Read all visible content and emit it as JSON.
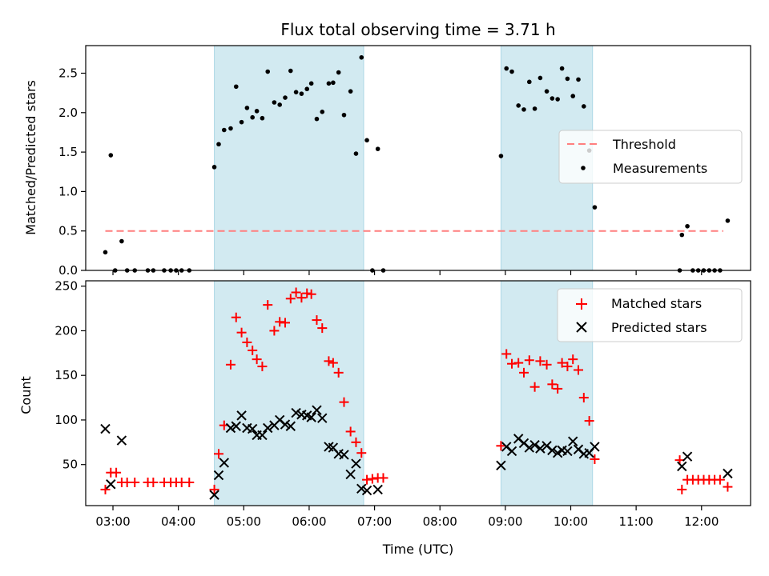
{
  "chart_data": [
    {
      "type": "scatter",
      "title": "Flux total observing time = 3.71 h",
      "xlabel": "",
      "ylabel": "Matched/Predicted stars",
      "ylim": [
        0,
        2.85
      ],
      "xlim": [
        "02:35",
        "12:45"
      ],
      "yticks": [
        "0.0",
        "0.5",
        "1.0",
        "1.5",
        "2.0",
        "2.5"
      ],
      "xticks": [
        "03:00",
        "04:00",
        "05:00",
        "06:00",
        "07:00",
        "08:00",
        "09:00",
        "10:00",
        "11:00",
        "12:00"
      ],
      "show_xtick_labels": false,
      "legend": {
        "placement": "center-right",
        "entries": [
          "Threshold",
          "Measurements"
        ]
      },
      "shaded_intervals": [
        [
          "04:33",
          "06:50"
        ],
        [
          "08:56",
          "10:20"
        ]
      ],
      "threshold": {
        "name": "Threshold",
        "value": 0.5,
        "x": [
          "02:53",
          "12:20"
        ],
        "color": "#ff7f7f"
      },
      "series": [
        {
          "name": "Measurements",
          "marker": "dot",
          "color": "#000000",
          "points": [
            [
              "02:53",
              0.23
            ],
            [
              "02:58",
              1.46
            ],
            [
              "03:02",
              0.0
            ],
            [
              "03:08",
              0.37
            ],
            [
              "03:13",
              0.0
            ],
            [
              "03:20",
              0.0
            ],
            [
              "03:32",
              0.0
            ],
            [
              "03:37",
              0.0
            ],
            [
              "03:47",
              0.0
            ],
            [
              "03:53",
              0.0
            ],
            [
              "03:58",
              0.0
            ],
            [
              "04:03",
              0.0
            ],
            [
              "04:10",
              0.0
            ],
            [
              "04:33",
              1.31
            ],
            [
              "04:37",
              1.6
            ],
            [
              "04:42",
              1.78
            ],
            [
              "04:48",
              1.8
            ],
            [
              "04:53",
              2.33
            ],
            [
              "04:58",
              1.88
            ],
            [
              "05:03",
              2.06
            ],
            [
              "05:08",
              1.94
            ],
            [
              "05:12",
              2.02
            ],
            [
              "05:17",
              1.93
            ],
            [
              "05:22",
              2.52
            ],
            [
              "05:28",
              2.13
            ],
            [
              "05:33",
              2.1
            ],
            [
              "05:38",
              2.19
            ],
            [
              "05:43",
              2.53
            ],
            [
              "05:48",
              2.26
            ],
            [
              "05:53",
              2.24
            ],
            [
              "05:58",
              2.3
            ],
            [
              "06:02",
              2.37
            ],
            [
              "06:07",
              1.92
            ],
            [
              "06:12",
              2.01
            ],
            [
              "06:18",
              2.37
            ],
            [
              "06:22",
              2.38
            ],
            [
              "06:27",
              2.51
            ],
            [
              "06:32",
              1.97
            ],
            [
              "06:38",
              2.27
            ],
            [
              "06:43",
              1.48
            ],
            [
              "06:48",
              2.7
            ],
            [
              "06:53",
              1.65
            ],
            [
              "06:58",
              0.0
            ],
            [
              "07:03",
              1.54
            ],
            [
              "07:08",
              0.0
            ],
            [
              "08:56",
              1.45
            ],
            [
              "09:01",
              2.56
            ],
            [
              "09:06",
              2.52
            ],
            [
              "09:12",
              2.09
            ],
            [
              "09:17",
              2.04
            ],
            [
              "09:22",
              2.39
            ],
            [
              "09:27",
              2.05
            ],
            [
              "09:32",
              2.44
            ],
            [
              "09:38",
              2.27
            ],
            [
              "09:43",
              2.18
            ],
            [
              "09:48",
              2.17
            ],
            [
              "09:52",
              2.56
            ],
            [
              "09:57",
              2.43
            ],
            [
              "10:02",
              2.21
            ],
            [
              "10:07",
              2.42
            ],
            [
              "10:12",
              2.08
            ],
            [
              "10:17",
              1.52
            ],
            [
              "10:22",
              0.8
            ],
            [
              "11:42",
              0.45
            ],
            [
              "11:47",
              0.56
            ],
            [
              "11:40",
              0.0
            ],
            [
              "11:52",
              0.0
            ],
            [
              "11:57",
              0.0
            ],
            [
              "12:02",
              0.0
            ],
            [
              "12:07",
              0.0
            ],
            [
              "12:12",
              0.0
            ],
            [
              "12:17",
              0.0
            ],
            [
              "12:24",
              0.63
            ]
          ]
        }
      ]
    },
    {
      "type": "scatter",
      "title": "",
      "xlabel": "Time (UTC)",
      "ylabel": "Count",
      "ylim": [
        4,
        256
      ],
      "xlim": [
        "02:35",
        "12:45"
      ],
      "yticks": [
        "50",
        "100",
        "150",
        "200",
        "250"
      ],
      "xticks": [
        "03:00",
        "04:00",
        "05:00",
        "06:00",
        "07:00",
        "08:00",
        "09:00",
        "10:00",
        "11:00",
        "12:00"
      ],
      "show_xtick_labels": true,
      "legend": {
        "placement": "top-right",
        "entries": [
          "Matched stars",
          "Predicted stars"
        ]
      },
      "shaded_intervals": [
        [
          "04:33",
          "06:50"
        ],
        [
          "08:56",
          "10:20"
        ]
      ],
      "series": [
        {
          "name": "Matched stars",
          "marker": "plus",
          "color": "#ff0000",
          "points": [
            [
              "02:53",
              22
            ],
            [
              "02:58",
              41
            ],
            [
              "03:03",
              41
            ],
            [
              "03:08",
              30
            ],
            [
              "03:13",
              30
            ],
            [
              "03:20",
              30
            ],
            [
              "03:32",
              30
            ],
            [
              "03:37",
              30
            ],
            [
              "03:47",
              30
            ],
            [
              "03:53",
              30
            ],
            [
              "03:58",
              30
            ],
            [
              "04:03",
              30
            ],
            [
              "04:10",
              30
            ],
            [
              "04:33",
              22
            ],
            [
              "04:37",
              62
            ],
            [
              "04:42",
              94
            ],
            [
              "04:48",
              162
            ],
            [
              "04:53",
              215
            ],
            [
              "04:58",
              198
            ],
            [
              "05:03",
              187
            ],
            [
              "05:08",
              178
            ],
            [
              "05:12",
              168
            ],
            [
              "05:17",
              160
            ],
            [
              "05:22",
              229
            ],
            [
              "05:28",
              200
            ],
            [
              "05:33",
              210
            ],
            [
              "05:38",
              209
            ],
            [
              "05:43",
              236
            ],
            [
              "05:48",
              243
            ],
            [
              "05:53",
              237
            ],
            [
              "05:58",
              242
            ],
            [
              "06:02",
              241
            ],
            [
              "06:07",
              212
            ],
            [
              "06:12",
              203
            ],
            [
              "06:18",
              166
            ],
            [
              "06:22",
              164
            ],
            [
              "06:27",
              153
            ],
            [
              "06:32",
              120
            ],
            [
              "06:38",
              87
            ],
            [
              "06:43",
              75
            ],
            [
              "06:48",
              63
            ],
            [
              "06:53",
              33
            ],
            [
              "06:58",
              34
            ],
            [
              "07:03",
              35
            ],
            [
              "07:08",
              35
            ],
            [
              "08:56",
              71
            ],
            [
              "09:01",
              174
            ],
            [
              "09:06",
              163
            ],
            [
              "09:12",
              164
            ],
            [
              "09:17",
              153
            ],
            [
              "09:22",
              167
            ],
            [
              "09:27",
              137
            ],
            [
              "09:32",
              166
            ],
            [
              "09:38",
              162
            ],
            [
              "09:43",
              140
            ],
            [
              "09:48",
              135
            ],
            [
              "09:52",
              164
            ],
            [
              "09:57",
              160
            ],
            [
              "10:02",
              168
            ],
            [
              "10:07",
              156
            ],
            [
              "10:12",
              125
            ],
            [
              "10:17",
              99
            ],
            [
              "10:22",
              56
            ],
            [
              "11:40",
              55
            ],
            [
              "11:42",
              22
            ],
            [
              "11:47",
              33
            ],
            [
              "11:52",
              33
            ],
            [
              "11:57",
              33
            ],
            [
              "12:02",
              33
            ],
            [
              "12:07",
              33
            ],
            [
              "12:12",
              33
            ],
            [
              "12:17",
              33
            ],
            [
              "12:24",
              25
            ]
          ]
        },
        {
          "name": "Predicted stars",
          "marker": "x",
          "color": "#000000",
          "points": [
            [
              "02:53",
              90
            ],
            [
              "02:58",
              28
            ],
            [
              "03:08",
              77
            ],
            [
              "04:33",
              16
            ],
            [
              "04:37",
              38
            ],
            [
              "04:42",
              52
            ],
            [
              "04:48",
              91
            ],
            [
              "04:53",
              93
            ],
            [
              "04:58",
              105
            ],
            [
              "05:03",
              91
            ],
            [
              "05:08",
              90
            ],
            [
              "05:12",
              83
            ],
            [
              "05:17",
              83
            ],
            [
              "05:22",
              91
            ],
            [
              "05:28",
              94
            ],
            [
              "05:33",
              100
            ],
            [
              "05:38",
              95
            ],
            [
              "05:43",
              93
            ],
            [
              "05:48",
              108
            ],
            [
              "05:53",
              106
            ],
            [
              "05:58",
              105
            ],
            [
              "06:02",
              103
            ],
            [
              "06:07",
              111
            ],
            [
              "06:12",
              102
            ],
            [
              "06:18",
              70
            ],
            [
              "06:22",
              69
            ],
            [
              "06:27",
              62
            ],
            [
              "06:32",
              61
            ],
            [
              "06:38",
              39
            ],
            [
              "06:43",
              51
            ],
            [
              "06:48",
              23
            ],
            [
              "06:53",
              21
            ],
            [
              "07:03",
              22
            ],
            [
              "08:56",
              49
            ],
            [
              "09:01",
              70
            ],
            [
              "09:06",
              65
            ],
            [
              "09:12",
              79
            ],
            [
              "09:17",
              74
            ],
            [
              "09:22",
              69
            ],
            [
              "09:27",
              72
            ],
            [
              "09:32",
              68
            ],
            [
              "09:38",
              71
            ],
            [
              "09:43",
              66
            ],
            [
              "09:48",
              63
            ],
            [
              "09:52",
              66
            ],
            [
              "09:57",
              65
            ],
            [
              "10:02",
              76
            ],
            [
              "10:07",
              67
            ],
            [
              "10:12",
              62
            ],
            [
              "10:17",
              63
            ],
            [
              "10:22",
              70
            ],
            [
              "11:42",
              48
            ],
            [
              "11:47",
              59
            ],
            [
              "12:24",
              40
            ]
          ]
        }
      ]
    }
  ],
  "colors": {
    "shade": "#add8e6",
    "threshold": "#ff7f7f",
    "matched": "#ff0000",
    "predicted": "#000000",
    "measurement": "#000000"
  }
}
